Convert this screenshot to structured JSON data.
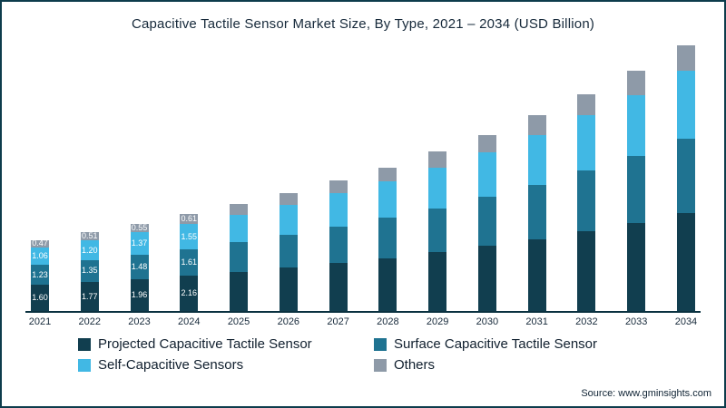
{
  "source": "Source: www.gminsights.com",
  "chart_data": {
    "type": "bar",
    "subtype": "stacked",
    "title": "Capacitive Tactile Sensor Market Size, By Type, 2021 – 2034 (USD Billion)",
    "unit": "USD Billion",
    "xlabel": "",
    "ylabel": "",
    "ylim": [
      0,
      17
    ],
    "grid": false,
    "legend_position": "bottom",
    "value_labels_through": 4,
    "categories": [
      "2021",
      "2022",
      "2023",
      "2024",
      "2025",
      "2026",
      "2027",
      "2028",
      "2029",
      "2030",
      "2031",
      "2032",
      "2033",
      "2034"
    ],
    "series": [
      {
        "name": "Projected Capacitive Tactile Sensor",
        "color": "#113e4f",
        "values": [
          1.6,
          1.77,
          1.96,
          2.16,
          2.4,
          2.65,
          2.95,
          3.25,
          3.6,
          4.0,
          4.4,
          4.9,
          5.4,
          6.0
        ]
      },
      {
        "name": "Surface Capacitive Tactile Sensor",
        "color": "#1f7391",
        "values": [
          1.23,
          1.35,
          1.48,
          1.61,
          1.8,
          2.0,
          2.2,
          2.45,
          2.7,
          3.0,
          3.35,
          3.7,
          4.1,
          4.55
        ]
      },
      {
        "name": "Self-Capacitive Sensors",
        "color": "#41b8e4",
        "values": [
          1.06,
          1.2,
          1.37,
          1.55,
          1.7,
          1.85,
          2.05,
          2.25,
          2.5,
          2.75,
          3.05,
          3.4,
          3.75,
          4.15
        ]
      },
      {
        "name": "Others",
        "color": "#8e9aa8",
        "values": [
          0.47,
          0.51,
          0.55,
          0.61,
          0.65,
          0.7,
          0.8,
          0.85,
          1.0,
          1.05,
          1.2,
          1.3,
          1.45,
          1.6
        ]
      }
    ]
  }
}
